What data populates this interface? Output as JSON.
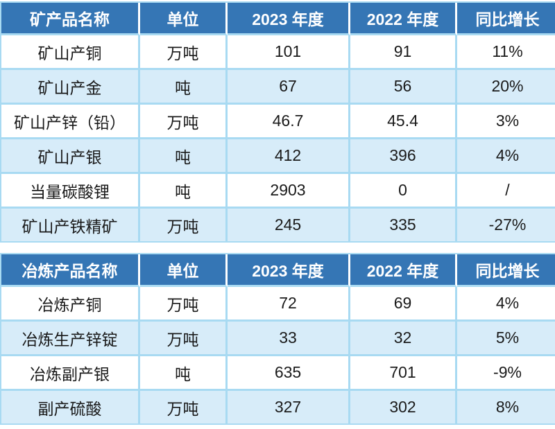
{
  "colors": {
    "header_bg": "#3576B5",
    "header_text": "#FFFFFF",
    "row_alt_bg": "#D7ECF9",
    "row_bg": "#FFFFFF",
    "cell_border": "#A8DAF2",
    "header_separator": "#FDFEFF",
    "body_text": "#1A1A1A"
  },
  "chart_data": [
    {
      "type": "table",
      "name": "mine-products",
      "headers": [
        "矿产品名称",
        "单位",
        "2023 年度",
        "2022 年度",
        "同比增长"
      ],
      "rows": [
        [
          "矿山产铜",
          "万吨",
          "101",
          "91",
          "11%"
        ],
        [
          "矿山产金",
          "吨",
          "67",
          "56",
          "20%"
        ],
        [
          "矿山产锌（铅）",
          "万吨",
          "46.7",
          "45.4",
          "3%"
        ],
        [
          "矿山产银",
          "吨",
          "412",
          "396",
          "4%"
        ],
        [
          "当量碳酸锂",
          "吨",
          "2903",
          "0",
          "/"
        ],
        [
          "矿山产铁精矿",
          "万吨",
          "245",
          "335",
          "-27%"
        ]
      ]
    },
    {
      "type": "table",
      "name": "smelting-products",
      "headers": [
        "冶炼产品名称",
        "单位",
        "2023 年度",
        "2022 年度",
        "同比增长"
      ],
      "rows": [
        [
          "冶炼产铜",
          "万吨",
          "72",
          "69",
          "4%"
        ],
        [
          "冶炼生产锌锭",
          "万吨",
          "33",
          "32",
          "5%"
        ],
        [
          "冶炼副产银",
          "吨",
          "635",
          "701",
          "-9%"
        ],
        [
          "副产硫酸",
          "万吨",
          "327",
          "302",
          "8%"
        ]
      ]
    }
  ]
}
